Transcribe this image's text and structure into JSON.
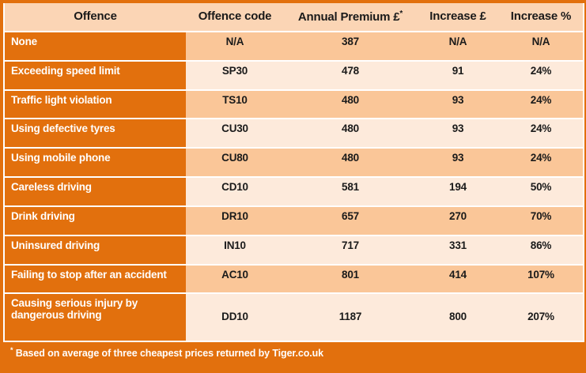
{
  "chart_data": {
    "type": "table",
    "columns": [
      "Offence",
      "Offence code",
      "Annual Premium £*",
      "Increase £",
      "Increase %"
    ],
    "rows": [
      [
        "None",
        "N/A",
        "387",
        "N/A",
        "N/A"
      ],
      [
        "Exceeding speed limit",
        "SP30",
        "478",
        "91",
        "24%"
      ],
      [
        "Traffic light violation",
        "TS10",
        "480",
        "93",
        "24%"
      ],
      [
        "Using defective tyres",
        "CU30",
        "480",
        "93",
        "24%"
      ],
      [
        "Using mobile phone",
        "CU80",
        "480",
        "93",
        "24%"
      ],
      [
        "Careless driving",
        "CD10",
        "581",
        "194",
        "50%"
      ],
      [
        "Drink driving",
        "DR10",
        "657",
        "270",
        "70%"
      ],
      [
        "Uninsured driving",
        "IN10",
        "717",
        "331",
        "86%"
      ],
      [
        "Failing to stop after an accident",
        "AC10",
        "801",
        "414",
        "107%"
      ],
      [
        "Causing serious injury by dangerous driving",
        "DD10",
        "1187",
        "800",
        "207%"
      ]
    ],
    "footnote": "* Based on average of three cheapest prices returned by Tiger.co.uk"
  },
  "header": {
    "premium_base": "Annual Premium £",
    "premium_sup": "*"
  },
  "footer": {
    "marker": "*",
    "text": " Based on average of three cheapest prices returned by Tiger.co.uk"
  },
  "colors": {
    "dark_orange": "#E2700D",
    "header_bg": "#FBD5B5",
    "row_dark": "#FAC698",
    "row_light": "#FDEADB",
    "grid_white": "#FFFFFF",
    "text_dark": "#1A1A1A",
    "text_light": "#FFFFFF"
  }
}
